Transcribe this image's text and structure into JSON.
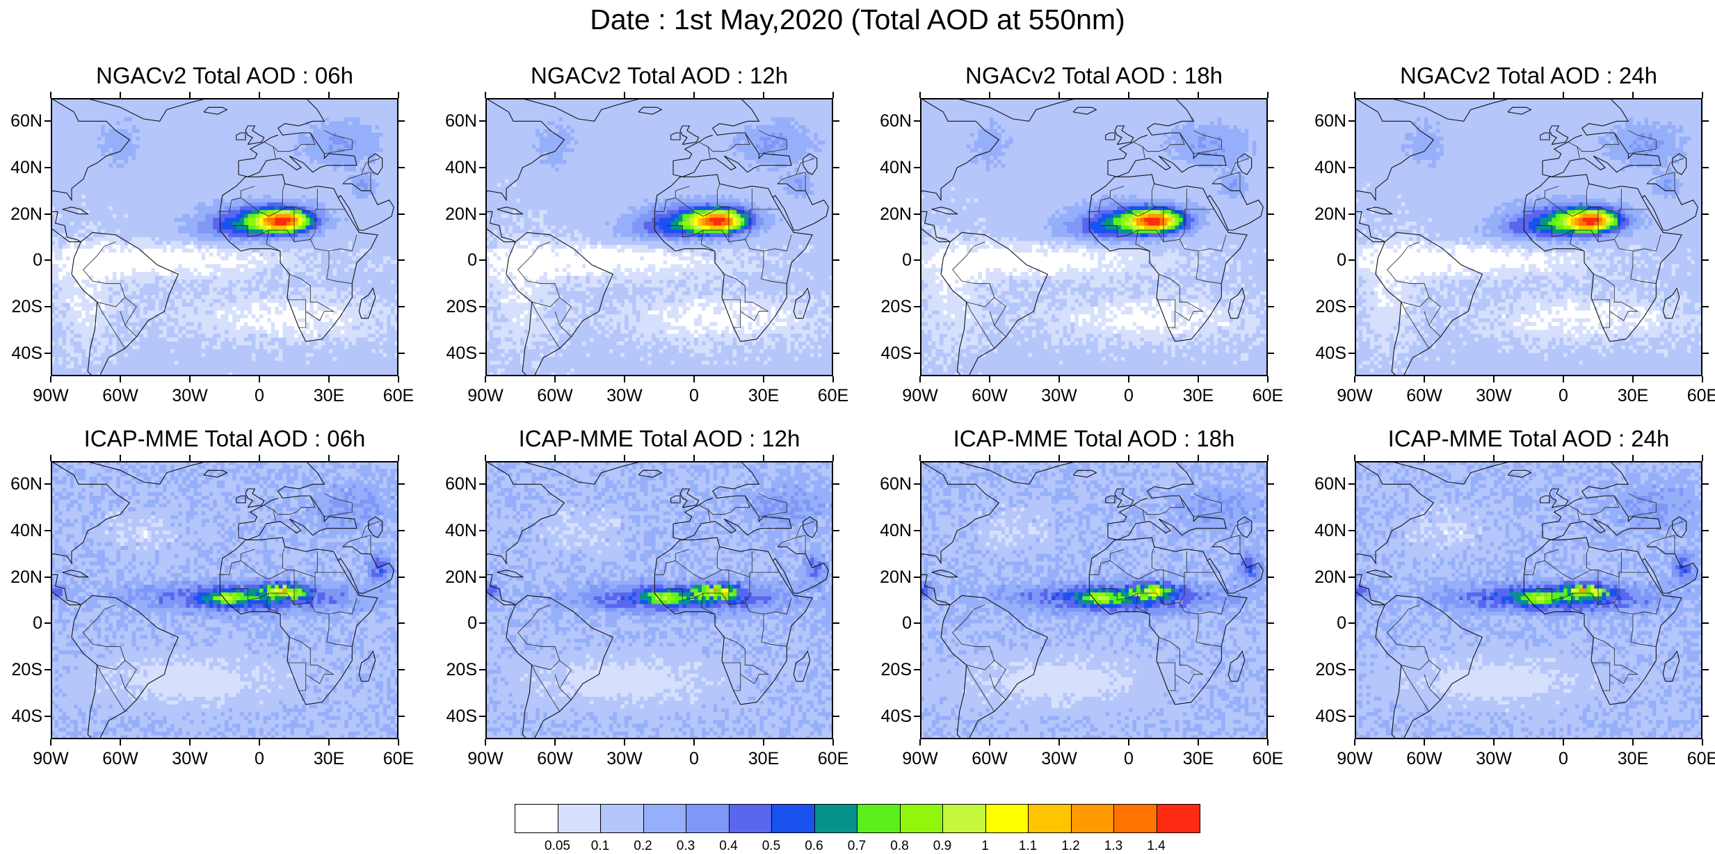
{
  "title": "Date : 1st May,2020 (Total AOD at 550nm)",
  "panels": [
    {
      "title": "NGACv2 Total AOD : 06h",
      "model": "ngac"
    },
    {
      "title": "NGACv2 Total AOD : 12h",
      "model": "ngac"
    },
    {
      "title": "NGACv2 Total AOD : 18h",
      "model": "ngac"
    },
    {
      "title": "NGACv2 Total AOD : 24h",
      "model": "ngac"
    },
    {
      "title": "ICAP-MME Total AOD : 06h",
      "model": "icap"
    },
    {
      "title": "ICAP-MME Total AOD : 12h",
      "model": "icap"
    },
    {
      "title": "ICAP-MME Total AOD : 18h",
      "model": "icap"
    },
    {
      "title": "ICAP-MME Total AOD : 24h",
      "model": "icap"
    }
  ],
  "lat_labels": [
    "60N",
    "40N",
    "20N",
    "0",
    "20S",
    "40S"
  ],
  "lon_labels": [
    "90W",
    "60W",
    "30W",
    "0",
    "30E",
    "60E"
  ],
  "colorbar": {
    "colors": [
      "#ffffff",
      "#d6e0fd",
      "#b5c6fb",
      "#96affa",
      "#7f98f7",
      "#5a66ee",
      "#1a52f0",
      "#06928c",
      "#5bf01d",
      "#91f50c",
      "#c5f73c",
      "#ffff00",
      "#ffc400",
      "#ff9b00",
      "#ff7300",
      "#ff2a12"
    ],
    "labels": [
      "0.05",
      "0.1",
      "0.2",
      "0.3",
      "0.4",
      "0.5",
      "0.6",
      "0.7",
      "0.8",
      "0.9",
      "1",
      "1.1",
      "1.2",
      "1.3",
      "1.4"
    ]
  }
}
